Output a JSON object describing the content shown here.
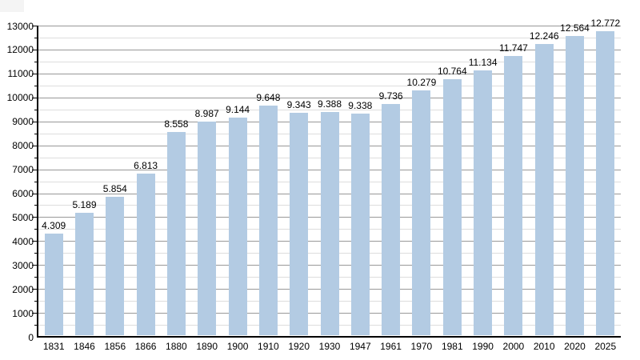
{
  "chart_data": {
    "type": "bar",
    "title": "",
    "xlabel": "",
    "ylabel": "",
    "categories": [
      "1831",
      "1846",
      "1856",
      "1866",
      "1880",
      "1890",
      "1900",
      "1910",
      "1920",
      "1930",
      "1947",
      "1961",
      "1970",
      "1981",
      "1990",
      "2000",
      "2010",
      "2020",
      "2025"
    ],
    "values": [
      4309,
      5189,
      5854,
      6813,
      8558,
      8987,
      9144,
      9648,
      9343,
      9388,
      9338,
      9736,
      10279,
      10764,
      11134,
      11747,
      12246,
      12564,
      12772
    ],
    "value_labels": [
      "4.309",
      "5.189",
      "5.854",
      "6.813",
      "8.558",
      "8.987",
      "9.144",
      "9.648",
      "9.343",
      "9.388",
      "9.338",
      "9.736",
      "10.279",
      "10.764",
      "11.134",
      "11.747",
      "12.246",
      "12.564",
      "12.772"
    ],
    "ylim": [
      0,
      13000
    ],
    "ytick_step": 1000,
    "yticks": [
      "0",
      "1000",
      "2000",
      "3000",
      "4000",
      "5000",
      "6000",
      "7000",
      "8000",
      "9000",
      "10000",
      "11000",
      "12000",
      "13000"
    ],
    "minor_grid_step": 500,
    "grid": true,
    "legend_position": "none",
    "colors": {
      "bar": "#b3cbe3",
      "major_grid": "#999999",
      "minor_grid": "#dddddd",
      "axis": "#000000",
      "text": "#000000",
      "background": "#ffffff"
    }
  }
}
